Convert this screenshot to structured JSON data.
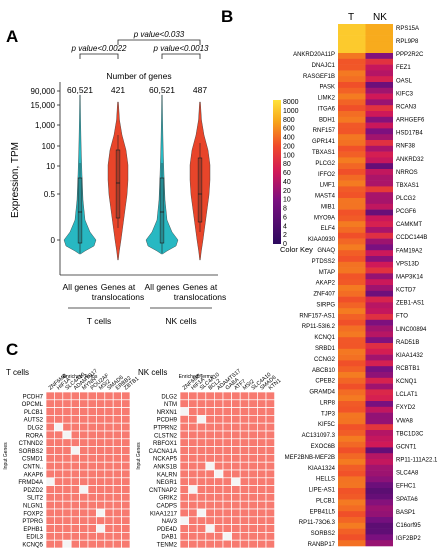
{
  "panels": {
    "a": "A",
    "b": "B",
    "c": "C"
  },
  "chart_data": [
    {
      "panel": "A",
      "type": "violin",
      "ylabel": "Expression, TPM",
      "y_scale": "log",
      "yticks": [
        "90,000",
        "15,000",
        "1,000",
        "100",
        "10",
        "0.5",
        "0"
      ],
      "counts_title": "Number of genes",
      "counts": [
        "60,521",
        "421",
        "60,521",
        "487"
      ],
      "categories": [
        "All genes",
        "Genes at translocations",
        "All genes",
        "Genes at translocations"
      ],
      "groups": [
        "T cells",
        "NK cells"
      ],
      "series_colors": [
        "#28b8c2",
        "#e8452a",
        "#28b8c2",
        "#e8452a"
      ],
      "comparisons": [
        {
          "label": "p value<0.0022",
          "from": 0,
          "to": 1
        },
        {
          "label": "p value<0.0013",
          "from": 2,
          "to": 3
        },
        {
          "label": "p value<0.033",
          "from": 1,
          "to": 3
        }
      ]
    },
    {
      "panel": "B",
      "type": "heatmap",
      "columns": [
        "T",
        "NK"
      ],
      "color_key": {
        "label": "Color Key",
        "ticks": [
          8000,
          1000,
          800,
          600,
          400,
          200,
          100,
          80,
          60,
          40,
          20,
          10,
          8,
          6,
          4,
          2,
          0
        ]
      },
      "row_labels_left": [
        "ANKRD20A11P",
        "DNAJC1",
        "RASGEF1B",
        "PASK",
        "LIMK2",
        "ITGA6",
        "BDH1",
        "RNF157",
        "GPR141",
        "TBXAS1",
        "PLCG2",
        "IFFO2",
        "LMF1",
        "MAST4",
        "MIB1",
        "MYO9A",
        "ELF4",
        "KIAA0930",
        "GNAQ",
        "PTDSS2",
        "MTAP",
        "AKAP2",
        "ZNF407",
        "SIRPG",
        "RNF157-AS1",
        "RP11-53I6.2",
        "KCNQ1",
        "SRBD1",
        "CCNG2",
        "ABCB10",
        "CPEB2",
        "GRAMD4",
        "LRP8",
        "TJP3",
        "KIF5C",
        "AC131097.3",
        "EXOC6B",
        "MEF2BNB-MEF2B",
        "KIAA1324",
        "HELLS",
        "LIPE-AS1",
        "PLCB1",
        "EPB41L5",
        "RP11-73O6.3",
        "SORBS2",
        "RANBP17"
      ],
      "row_labels_right": [
        "RPS15A",
        "RPL9P8",
        "PPP2R2C",
        "FEZ1",
        "OASL",
        "KIFC3",
        "RCAN3",
        "ARHGEF6",
        "HSD17B4",
        "RNF38",
        "ANKRD32",
        "NRROS",
        "TBXAS1",
        "PLCG2",
        "PCGF6",
        "CAMKMT",
        "CCDC144B",
        "FAM19A2",
        "VPS13D",
        "MAP3K14",
        "KCTD7",
        "ZEB1-AS1",
        "FTO",
        "LINC00894",
        "RAD51B",
        "KIAA1432",
        "RCBTB1",
        "KCNQ1",
        "LCLAT1",
        "FXYD2",
        "VWA8",
        "TBC1D3C",
        "GCNT1",
        "RP11-111A22.1",
        "SLC4A8",
        "EFHC1",
        "SPATA6",
        "BASP1",
        "C16orf95",
        "IGF2BP2"
      ]
    },
    {
      "panel": "C",
      "type": "table",
      "title": "T cells",
      "col_header": "Enriched Terms",
      "row_header": "Input Genes",
      "columns": [
        "ZNF6MB",
        "HIF1A",
        "SLC4A10",
        "ADAMTS17",
        "MYNN",
        "POU2AF",
        "MSI2",
        "SMAD6",
        "ERBB2",
        "ZBTB1"
      ],
      "rows": [
        "PCDH7",
        "OPCML",
        "PLCB1",
        "AUTS2",
        "DLG2",
        "RORA",
        "CTNND2",
        "SORBS2",
        "CSMD1",
        "CNTN..",
        "AKAP6",
        "FRMD4A",
        "PDZD2",
        "SLIT2",
        "NLGN1",
        "FOXP2",
        "PTPRG",
        "EPHB1",
        "EDIL3",
        "KCNQ5"
      ],
      "missing": [
        [
          4,
          1
        ],
        [
          5,
          2
        ],
        [
          7,
          3
        ],
        [
          11,
          0
        ],
        [
          12,
          4
        ],
        [
          15,
          6
        ],
        [
          17,
          6
        ],
        [
          19,
          2
        ]
      ]
    },
    {
      "panel": "C",
      "type": "table",
      "title": "NK cells",
      "col_header": "Enriched Terms",
      "row_header": "Input Genes",
      "columns": [
        "ZNF6MB",
        "HIF1A",
        "SLC4A10",
        "BCL2",
        "ADAMTS17",
        "GABA",
        "ATF7",
        "MSI2",
        "SLC4A10",
        "SMAD6",
        "KTN1"
      ],
      "rows": [
        "DLG2",
        "NTM",
        "NRXN1",
        "PCDH9",
        "PTPRN2",
        "CLSTN2",
        "RBFOX1",
        "CACNA1A",
        "NCKAP5",
        "ANKS1B",
        "KALRN",
        "NEGR1",
        "CNTNAP2",
        "GRIK2",
        "CADPS",
        "KIAA1217",
        "NAV3",
        "PDE4D",
        "DAB1",
        "TENM2"
      ],
      "missing": [
        [
          2,
          0
        ],
        [
          3,
          2
        ],
        [
          9,
          3
        ],
        [
          10,
          4
        ],
        [
          11,
          6
        ],
        [
          12,
          1
        ],
        [
          15,
          2
        ],
        [
          16,
          0
        ],
        [
          17,
          3
        ],
        [
          18,
          5
        ]
      ]
    }
  ]
}
